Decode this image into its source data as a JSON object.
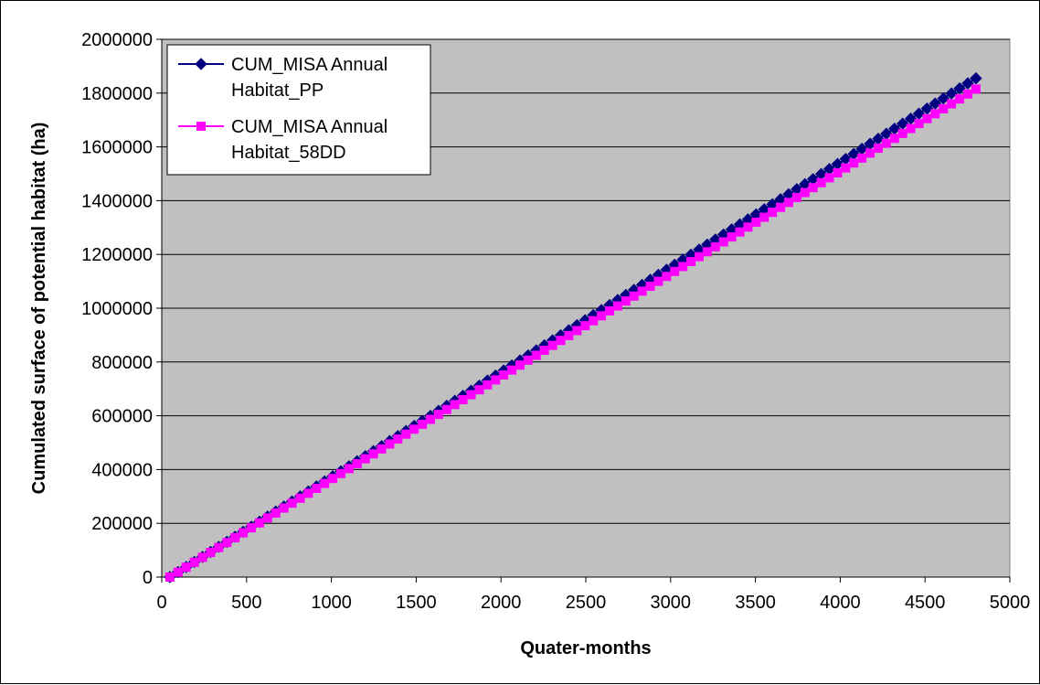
{
  "chart_data": {
    "type": "line",
    "xlabel": "Quater-months",
    "ylabel": "Cumulated surface of potential habitat (ha)",
    "xlim": [
      0,
      5000
    ],
    "ylim": [
      0,
      2000000
    ],
    "x_ticks": [
      "0",
      "500",
      "1000",
      "1500",
      "2000",
      "2500",
      "3000",
      "3500",
      "4000",
      "4500",
      "5000"
    ],
    "y_ticks": [
      "0",
      "200000",
      "400000",
      "600000",
      "800000",
      "1000000",
      "1200000",
      "1400000",
      "1600000",
      "1800000",
      "2000000"
    ],
    "grid": "horizontal",
    "legend_position": "top-left",
    "plot_background": "#c0c0c0",
    "series": [
      {
        "name": "CUM_MISA Annual Habitat_PP",
        "legend_lines": [
          "CUM_MISA Annual",
          "Habitat_PP"
        ],
        "color": "#000080",
        "marker": "diamond",
        "x": [
          48,
          4800
        ],
        "y": [
          0,
          1855000
        ]
      },
      {
        "name": "CUM_MISA Annual Habitat_58DD",
        "legend_lines": [
          "CUM_MISA Annual",
          "Habitat_58DD"
        ],
        "color": "#ff00ff",
        "marker": "square",
        "x": [
          48,
          4800
        ],
        "y": [
          0,
          1815000
        ]
      }
    ],
    "marker_step": 48
  }
}
